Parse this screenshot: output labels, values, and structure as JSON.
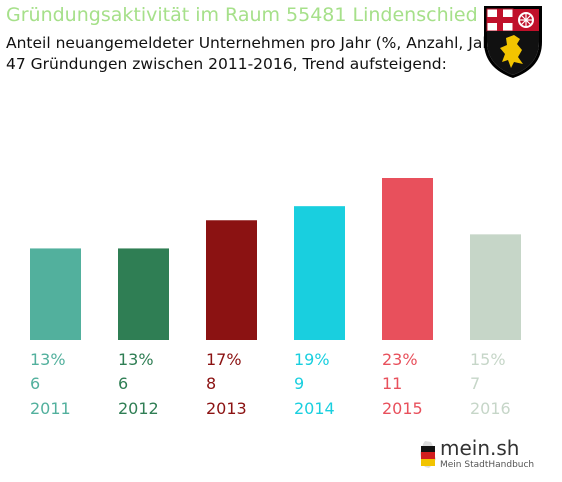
{
  "header": {
    "title": "Gründungsaktivität im Raum 55481 Lindenschied",
    "subtitle_line1": "Anteil neuangemeldeter Unternehmen pro Jahr (%, Anzahl, Jahr)",
    "subtitle_line2": "47 Gründungen zwischen 2011-2016, Trend aufsteigend:"
  },
  "emblem": {
    "icon": "coat-of-arms-rheinland-pfalz-icon"
  },
  "brand": {
    "name": "mein.sh",
    "tagline": "Mein StadtHandbuch",
    "icon": "germany-map-icon"
  },
  "chart_data": {
    "type": "bar",
    "categories": [
      "2011",
      "2012",
      "2013",
      "2014",
      "2015",
      "2016"
    ],
    "values": [
      13,
      13,
      17,
      19,
      23,
      15
    ],
    "value_labels": [
      "13%",
      "13%",
      "17%",
      "19%",
      "23%",
      "15%"
    ],
    "counts": [
      "6",
      "6",
      "8",
      "9",
      "11",
      "7"
    ],
    "colors": [
      "#52b09d",
      "#2f7e54",
      "#8b1212",
      "#19cfdf",
      "#e8505c",
      "#c6d6c8"
    ],
    "ylim": [
      0,
      23
    ],
    "grid": false,
    "legend": "none"
  }
}
